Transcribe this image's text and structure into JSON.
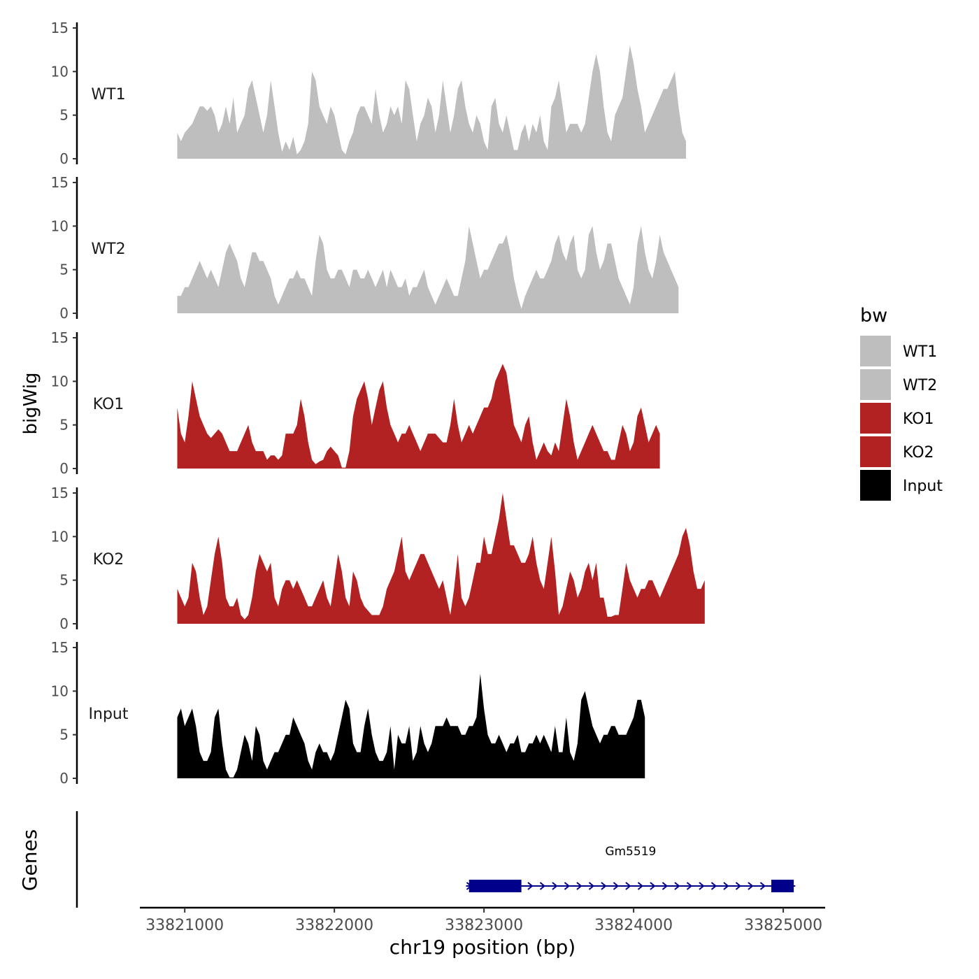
{
  "chart_data": {
    "type": "area",
    "title": "",
    "xlabel": "chr19 position (bp)",
    "y_panel_group_label": "bigWig",
    "genes_panel_label": "Genes",
    "xlim": [
      33820700,
      33825280
    ],
    "ylim": [
      0,
      15
    ],
    "x_ticks": [
      {
        "value": 33821000,
        "label": "33821000"
      },
      {
        "value": 33822000,
        "label": "33822000"
      },
      {
        "value": 33823000,
        "label": "33823000"
      },
      {
        "value": 33824000,
        "label": "33824000"
      },
      {
        "value": 33825000,
        "label": "33825000"
      }
    ],
    "y_ticks": [
      {
        "value": 0,
        "label": "0"
      },
      {
        "value": 5,
        "label": "5"
      },
      {
        "value": 10,
        "label": "10"
      },
      {
        "value": 15,
        "label": "15"
      }
    ],
    "legend": {
      "title": "bw",
      "position": "right",
      "entries": [
        {
          "label": "WT1",
          "color": "#bebebe"
        },
        {
          "label": "WT2",
          "color": "#bebebe"
        },
        {
          "label": "KO1",
          "color": "#b22222"
        },
        {
          "label": "KO2",
          "color": "#b22222"
        },
        {
          "label": "Input",
          "color": "#000000"
        }
      ]
    },
    "series": [
      {
        "name": "WT1",
        "color": "#bebebe",
        "x_start": 33820950,
        "x_step": 25,
        "values": [
          3,
          2,
          3,
          3.5,
          4,
          5,
          6,
          6,
          5.5,
          6,
          5,
          3,
          4,
          6,
          4,
          7,
          3,
          4,
          5,
          8,
          9,
          7,
          5,
          3,
          5,
          9,
          6,
          3,
          0.8,
          2,
          1,
          2.5,
          0.5,
          1,
          2,
          4,
          10,
          9,
          6,
          5,
          4,
          6,
          5,
          3,
          1,
          0.5,
          2,
          3,
          5,
          6,
          6,
          5,
          4,
          8,
          5,
          3,
          4,
          6,
          5,
          6,
          4,
          9,
          8,
          5,
          2,
          4,
          5,
          7,
          6,
          3,
          5,
          9,
          6,
          3,
          5,
          8,
          9,
          6,
          4,
          3,
          5,
          4,
          2,
          1,
          6,
          7,
          4,
          3,
          5,
          3,
          1,
          1,
          3,
          4,
          2,
          4,
          3,
          5,
          2,
          1,
          6,
          7,
          9,
          6,
          3,
          4,
          4,
          4,
          3,
          4,
          7,
          10,
          12,
          10,
          6,
          3,
          2,
          5,
          6,
          7,
          10,
          13,
          11,
          8,
          6,
          3,
          4,
          5,
          6,
          7,
          8,
          8,
          9,
          10,
          6,
          3,
          2
        ],
        "smooth_points": true
      },
      {
        "name": "WT2",
        "color": "#bebebe",
        "x_start": 33820950,
        "x_step": 25,
        "values": [
          2,
          2,
          3,
          3,
          4,
          5,
          6,
          5,
          4,
          5,
          4,
          3,
          5,
          7,
          8,
          7,
          6,
          4,
          3,
          5,
          7,
          7,
          6,
          6,
          5,
          4,
          2,
          1,
          2,
          3,
          4,
          4,
          5,
          4,
          4,
          3,
          2,
          6,
          9,
          8,
          5,
          4,
          4,
          5,
          5,
          4,
          3,
          5,
          5,
          4,
          4,
          5,
          4,
          3,
          4,
          5,
          3,
          5,
          4,
          3,
          3,
          4,
          2,
          3,
          3,
          4,
          5,
          3,
          2,
          1,
          2,
          3,
          4,
          3,
          2,
          2,
          4,
          6,
          10,
          8,
          6,
          4,
          5,
          5,
          6,
          7,
          8,
          8,
          9,
          7,
          4,
          2,
          0.5,
          2,
          3,
          4,
          5,
          4,
          4,
          5,
          6,
          8,
          9,
          7,
          6,
          8,
          9,
          5,
          4,
          5,
          9,
          10,
          7,
          5,
          6,
          8,
          8,
          6,
          4,
          3,
          2,
          1,
          3,
          8,
          10,
          7,
          5,
          4,
          6,
          9,
          7,
          6,
          5,
          4,
          3
        ],
        "smooth_points": true
      },
      {
        "name": "KO1",
        "color": "#b22222",
        "x_start": 33820950,
        "x_step": 25,
        "values": [
          7,
          4,
          3,
          6,
          10,
          8,
          6,
          5,
          4,
          3.5,
          4,
          4.5,
          4,
          3,
          2,
          2,
          2,
          3,
          4,
          5,
          3,
          2,
          2,
          2,
          1,
          1.5,
          1.5,
          1,
          1.5,
          4,
          4,
          4,
          5,
          8,
          6,
          3,
          1,
          0.5,
          0.8,
          1,
          2,
          2.5,
          2,
          1.5,
          0.1,
          0.1,
          2,
          6,
          8,
          9,
          10,
          8,
          5,
          7,
          9,
          10,
          7,
          5,
          4,
          3,
          4,
          4,
          5,
          4,
          3,
          2,
          3,
          4,
          4,
          4,
          3.5,
          3,
          3,
          5,
          8,
          5,
          3,
          4,
          5,
          4,
          5,
          6,
          7,
          7,
          8,
          10,
          11,
          12,
          11,
          8,
          5,
          4,
          3,
          5,
          6,
          3,
          1,
          2,
          3,
          2,
          1.5,
          3,
          2,
          5,
          8,
          6,
          3,
          1,
          2,
          3,
          4,
          5,
          4,
          3,
          2,
          2,
          1,
          1,
          3,
          5,
          4,
          2,
          3,
          6,
          7,
          5,
          3,
          4,
          5,
          4
        ],
        "smooth_points": true
      },
      {
        "name": "KO2",
        "color": "#b22222",
        "x_start": 33820950,
        "x_step": 25,
        "values": [
          4,
          3,
          2,
          3,
          7,
          6,
          3,
          1,
          2,
          5,
          8,
          10,
          7,
          3,
          2,
          2,
          3,
          1,
          0.5,
          1,
          3,
          6,
          8,
          7,
          6,
          7,
          3,
          2,
          4,
          5,
          5,
          4,
          5,
          4,
          3,
          2,
          2,
          3,
          4,
          5,
          3,
          2,
          5,
          8,
          6,
          3,
          2,
          6,
          5,
          3,
          2,
          1.5,
          1,
          1,
          1,
          2,
          4,
          5,
          6,
          8,
          10,
          6,
          5,
          6,
          7,
          8,
          8,
          7,
          6,
          5,
          4,
          5,
          3,
          1,
          4,
          8,
          3,
          2,
          3,
          5,
          7,
          7,
          10,
          8,
          8,
          10,
          12,
          15,
          12,
          9,
          9,
          8,
          7,
          7,
          8,
          10,
          7,
          5,
          4,
          7,
          10,
          6,
          1,
          2,
          4,
          6,
          5,
          3,
          4,
          6,
          7,
          5,
          7,
          3,
          3,
          0.8,
          0.8,
          1,
          1,
          4,
          7,
          5,
          4,
          3,
          4,
          4,
          5,
          5,
          4,
          3,
          4,
          5,
          6,
          7,
          8,
          10,
          11,
          9,
          6,
          4,
          4,
          5
        ],
        "smooth_points": true
      },
      {
        "name": "Input",
        "color": "#000000",
        "x_start": 33820950,
        "x_step": 25,
        "values": [
          7,
          8,
          6,
          7,
          8,
          6,
          3,
          2,
          2,
          3,
          7,
          8,
          4,
          1,
          0.1,
          0.1,
          1,
          3,
          5,
          4,
          2,
          6,
          5,
          2,
          1,
          2,
          3,
          3,
          4,
          5,
          5,
          7,
          6,
          5,
          4,
          2,
          1,
          3,
          4,
          3,
          3,
          2,
          3,
          5,
          7,
          9,
          8,
          4,
          3,
          3,
          6,
          8,
          5,
          3,
          2,
          2,
          3,
          6,
          1,
          5,
          4,
          4,
          6,
          2,
          3,
          6,
          4,
          3,
          4,
          6,
          6,
          6,
          7,
          6,
          6,
          6,
          5,
          5,
          6,
          6,
          7,
          12,
          8,
          5,
          4,
          4,
          5,
          4,
          3,
          4,
          4,
          5,
          3,
          3,
          4,
          4,
          5,
          4,
          5,
          4,
          3,
          6,
          3,
          3,
          7,
          3,
          2,
          4,
          9,
          10,
          8,
          6,
          5,
          4,
          5,
          5,
          6,
          6,
          5,
          5,
          5,
          6,
          7,
          9,
          9,
          7
        ]
      }
    ],
    "genes": [
      {
        "name": "Gm5519",
        "color": "#00008b",
        "start": 33822880,
        "end": 33825080,
        "strand": "+",
        "exons": [
          {
            "start": 33822900,
            "end": 33823250
          },
          {
            "start": 33824920,
            "end": 33825070
          }
        ]
      }
    ]
  }
}
